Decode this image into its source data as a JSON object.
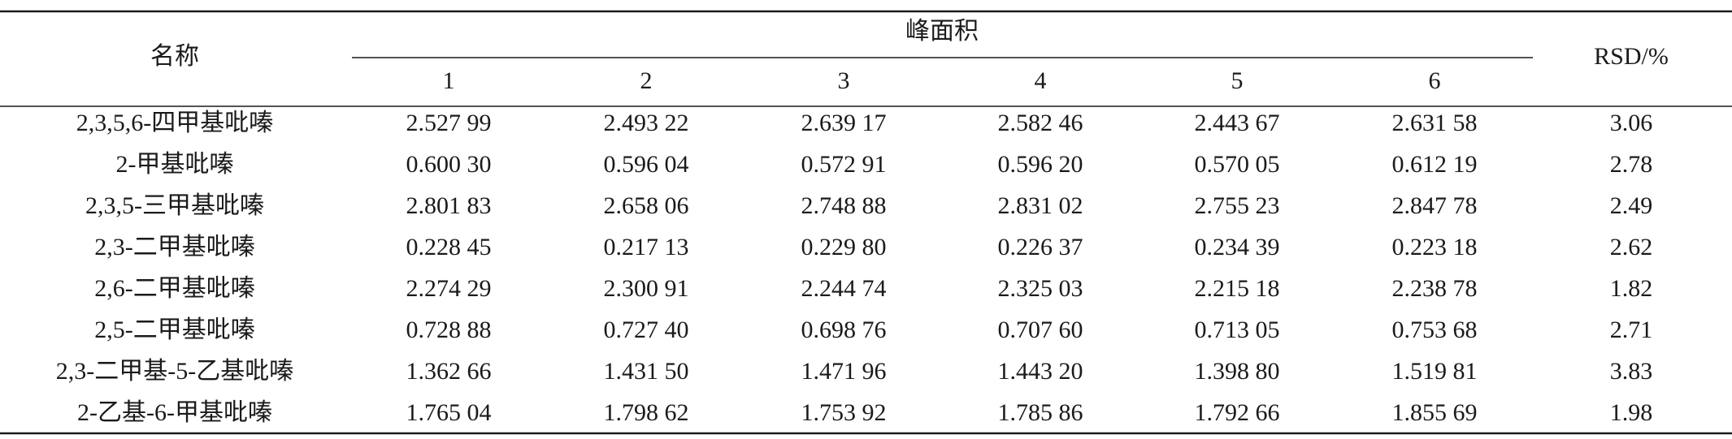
{
  "table": {
    "header": {
      "name": "名称",
      "group": "峰面积",
      "columns": [
        "1",
        "2",
        "3",
        "4",
        "5",
        "6"
      ],
      "rsd": "RSD/%"
    },
    "rows": [
      [
        "2,3,5,6-四甲基吡嗪",
        "2.527 99",
        "2.493 22",
        "2.639 17",
        "2.582 46",
        "2.443 67",
        "2.631 58",
        "3.06"
      ],
      [
        "2-甲基吡嗪",
        "0.600 30",
        "0.596 04",
        "0.572 91",
        "0.596 20",
        "0.570 05",
        "0.612 19",
        "2.78"
      ],
      [
        "2,3,5-三甲基吡嗪",
        "2.801 83",
        "2.658 06",
        "2.748 88",
        "2.831 02",
        "2.755 23",
        "2.847 78",
        "2.49"
      ],
      [
        "2,3-二甲基吡嗪",
        "0.228 45",
        "0.217 13",
        "0.229 80",
        "0.226 37",
        "0.234 39",
        "0.223 18",
        "2.62"
      ],
      [
        "2,6-二甲基吡嗪",
        "2.274 29",
        "2.300 91",
        "2.244 74",
        "2.325 03",
        "2.215 18",
        "2.238 78",
        "1.82"
      ],
      [
        "2,5-二甲基吡嗪",
        "0.728 88",
        "0.727 40",
        "0.698 76",
        "0.707 60",
        "0.713 05",
        "0.753 68",
        "2.71"
      ],
      [
        "2,3-二甲基-5-乙基吡嗪",
        "1.362 66",
        "1.431 50",
        "1.471 96",
        "1.443 20",
        "1.398 80",
        "1.519 81",
        "3.83"
      ],
      [
        "2-乙基-6-甲基吡嗪",
        "1.765 04",
        "1.798 62",
        "1.753 92",
        "1.785 86",
        "1.792 66",
        "1.855 69",
        "1.98"
      ]
    ]
  }
}
